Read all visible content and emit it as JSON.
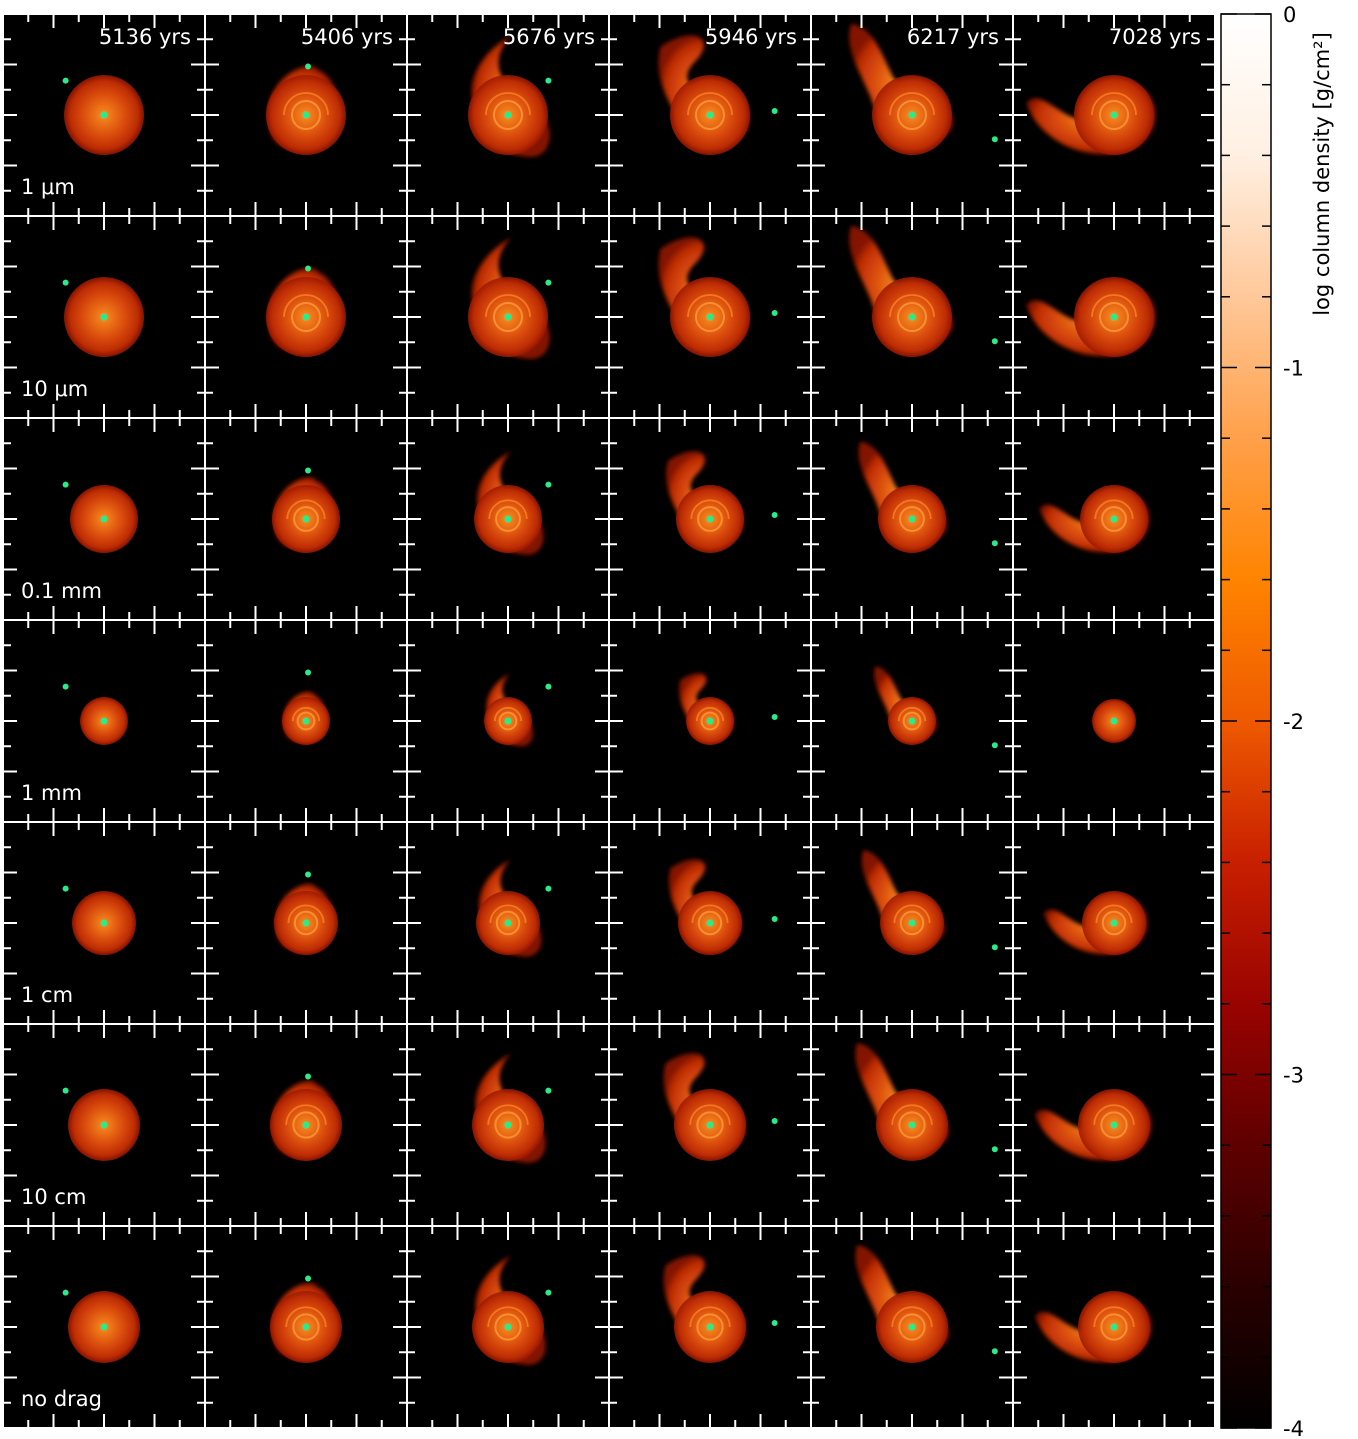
{
  "figure": {
    "time_labels": [
      "5136 yrs",
      "5406 yrs",
      "5676 yrs",
      "5946 yrs",
      "6217 yrs",
      "7028 yrs"
    ],
    "row_labels": [
      "1 μm",
      "10 μm",
      "0.1 mm",
      "1 mm",
      "1 cm",
      "10 cm",
      "no drag"
    ],
    "panels": [
      [
        {
          "disc": "round",
          "size": 1.0
        },
        {
          "disc": "round-tilted",
          "size": 1.0
        },
        {
          "disc": "tidal-tail",
          "size": 1.0
        },
        {
          "disc": "spiral-tail",
          "size": 1.0
        },
        {
          "disc": "spiral-tail-long",
          "size": 1.0
        },
        {
          "disc": "spiral-arc",
          "size": 1.0
        }
      ],
      [
        {
          "disc": "round",
          "size": 1.0
        },
        {
          "disc": "round-tilted",
          "size": 1.0
        },
        {
          "disc": "tidal-tail",
          "size": 1.0
        },
        {
          "disc": "spiral-tail",
          "size": 1.0
        },
        {
          "disc": "spiral-tail-long",
          "size": 1.0
        },
        {
          "disc": "spiral-arc",
          "size": 1.0
        }
      ],
      [
        {
          "disc": "round",
          "size": 0.85
        },
        {
          "disc": "round-tilted",
          "size": 0.85
        },
        {
          "disc": "tidal-tail",
          "size": 0.85
        },
        {
          "disc": "spiral-tail",
          "size": 0.85
        },
        {
          "disc": "spiral-tail-long",
          "size": 0.85
        },
        {
          "disc": "spiral-arc",
          "size": 0.85
        }
      ],
      [
        {
          "disc": "round",
          "size": 0.6
        },
        {
          "disc": "round-tilted",
          "size": 0.6
        },
        {
          "disc": "tidal-tail",
          "size": 0.6
        },
        {
          "disc": "spiral-tail",
          "size": 0.6
        },
        {
          "disc": "spiral-tail-long",
          "size": 0.6
        },
        {
          "disc": "round",
          "size": 0.55
        }
      ],
      [
        {
          "disc": "round",
          "size": 0.8
        },
        {
          "disc": "round-tilted",
          "size": 0.8
        },
        {
          "disc": "tidal-tail",
          "size": 0.8
        },
        {
          "disc": "spiral-tail",
          "size": 0.8
        },
        {
          "disc": "spiral-tail-long",
          "size": 0.8
        },
        {
          "disc": "spiral-arc",
          "size": 0.8
        }
      ],
      [
        {
          "disc": "round",
          "size": 0.9
        },
        {
          "disc": "round-tilted",
          "size": 0.9
        },
        {
          "disc": "tidal-tail",
          "size": 0.9
        },
        {
          "disc": "spiral-tail",
          "size": 0.9
        },
        {
          "disc": "spiral-tail-long",
          "size": 0.9
        },
        {
          "disc": "spiral-arc",
          "size": 0.9
        }
      ],
      [
        {
          "disc": "round",
          "size": 0.9
        },
        {
          "disc": "round-tilted",
          "size": 0.9
        },
        {
          "disc": "tidal-tail",
          "size": 0.9
        },
        {
          "disc": "spiral-tail",
          "size": 0.9
        },
        {
          "disc": "spiral-tail-long",
          "size": 0.9
        },
        {
          "disc": "spiral-arc",
          "size": 0.9
        }
      ]
    ],
    "colorbar": {
      "label": "log column density [g/cm²]",
      "min": -4,
      "max": 0,
      "ticks": [
        {
          "value": 0,
          "label": "0"
        },
        {
          "value": -1,
          "label": "-1"
        },
        {
          "value": -2,
          "label": "-2"
        },
        {
          "value": -3,
          "label": "-3"
        },
        {
          "value": -4,
          "label": "-4"
        }
      ],
      "colormap": [
        "#000000",
        "#2a0000",
        "#5e0000",
        "#990300",
        "#c81f00",
        "#ee5a00",
        "#ff8400",
        "#ffa04a",
        "#ffc89a",
        "#fff0e2",
        "#ffffff"
      ]
    },
    "colors": {
      "panel_background": "#000000",
      "frame": "#ffffff",
      "star_marker": "#2aeb8a",
      "disc_center": "#f07a18",
      "disc_edge": "#b82400"
    }
  }
}
